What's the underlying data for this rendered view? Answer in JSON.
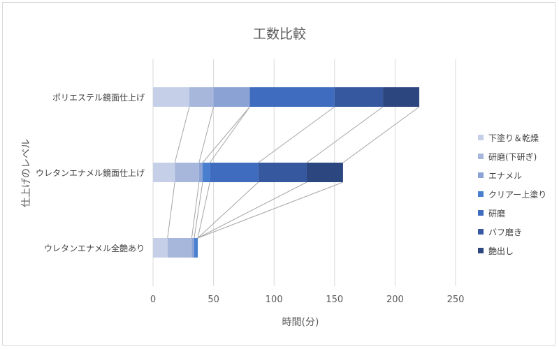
{
  "chart_data": {
    "type": "bar",
    "orientation": "horizontal",
    "stacked": true,
    "title": "工数比較",
    "xlabel": "時間(分)",
    "ylabel": "仕上げのレベル",
    "xlim": [
      0,
      250
    ],
    "xticks": [
      0,
      50,
      100,
      150,
      200,
      250
    ],
    "grid": true,
    "legend_position": "right",
    "series_lines": true,
    "categories": [
      "ポリエステル鏡面仕上げ",
      "ウレタンエナメル鏡面仕上げ",
      "ウレタンエナメル全艶あり"
    ],
    "series": [
      {
        "name": "下塗り＆乾燥",
        "color": "#c5d0e8",
        "values": [
          30,
          18,
          12
        ]
      },
      {
        "name": "研磨(下研ぎ)",
        "color": "#a7b7dc",
        "values": [
          20,
          20,
          20
        ]
      },
      {
        "name": "エナメル",
        "color": "#8aa2d4",
        "values": [
          30,
          3,
          2
        ]
      },
      {
        "name": "クリアー上塗り",
        "color": "#4a7fd0",
        "values": [
          0,
          6,
          3
        ]
      },
      {
        "name": "研磨",
        "color": "#3f6cbf",
        "values": [
          70,
          40,
          0
        ]
      },
      {
        "name": "バフ磨き",
        "color": "#36589f",
        "values": [
          40,
          40,
          0
        ]
      },
      {
        "name": "艶出し",
        "color": "#2c4680",
        "values": [
          30,
          30,
          0
        ]
      }
    ]
  }
}
